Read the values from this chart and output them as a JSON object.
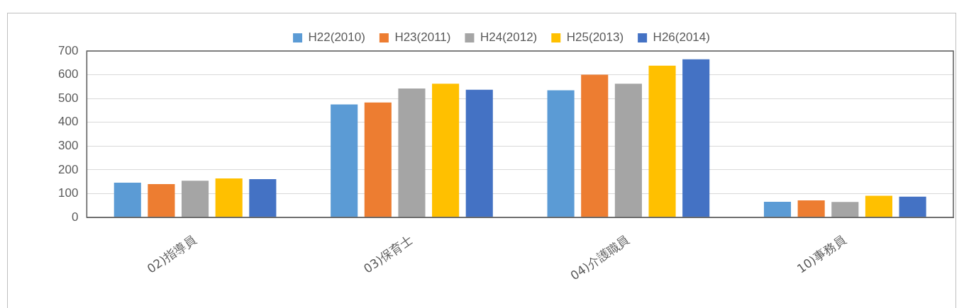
{
  "chart_data": {
    "type": "bar",
    "categories": [
      "02)指導員",
      "03)保育士",
      "04)介護職員",
      "10)事務員"
    ],
    "series": [
      {
        "name": "H22(2010)",
        "color": "#5b9bd5",
        "values": [
          146,
          475,
          535,
          66
        ]
      },
      {
        "name": "H23(2011)",
        "color": "#ed7d31",
        "values": [
          140,
          483,
          600,
          72
        ]
      },
      {
        "name": "H24(2012)",
        "color": "#a5a5a5",
        "values": [
          154,
          542,
          562,
          65
        ]
      },
      {
        "name": "H25(2013)",
        "color": "#ffc000",
        "values": [
          164,
          562,
          638,
          91
        ]
      },
      {
        "name": "H26(2014)",
        "color": "#4472c4",
        "values": [
          161,
          537,
          665,
          87
        ]
      }
    ],
    "ylim": [
      0,
      700
    ],
    "yticks": [
      0,
      100,
      200,
      300,
      400,
      500,
      600,
      700
    ],
    "grid": "y",
    "legend": "top"
  }
}
